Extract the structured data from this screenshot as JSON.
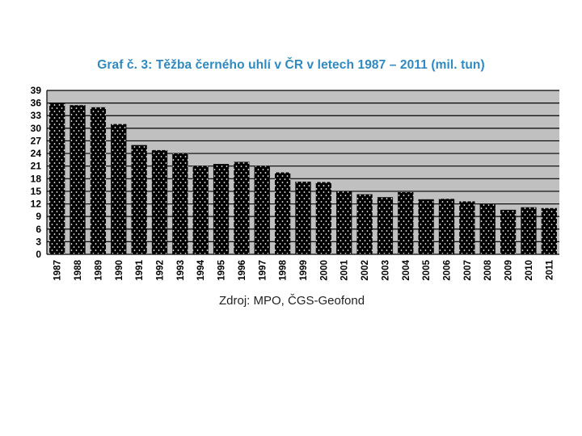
{
  "chart_data": {
    "type": "bar",
    "title": "Graf č. 3: Těžba černého uhlí v ČR v letech 1987 – 2011 (mil. tun)",
    "categories": [
      "1987",
      "1988",
      "1989",
      "1990",
      "1991",
      "1992",
      "1993",
      "1994",
      "1995",
      "1996",
      "1997",
      "1998",
      "1999",
      "2000",
      "2001",
      "2002",
      "2003",
      "2004",
      "2005",
      "2006",
      "2007",
      "2008",
      "2009",
      "2010",
      "2011"
    ],
    "values": [
      36.0,
      35.5,
      35.0,
      31.0,
      26.0,
      24.8,
      24.0,
      21.0,
      21.5,
      22.0,
      21.0,
      19.5,
      17.3,
      17.2,
      15.0,
      14.3,
      13.6,
      14.8,
      13.1,
      13.2,
      12.6,
      12.1,
      10.6,
      11.2,
      11.0
    ],
    "yticks": [
      0,
      3,
      6,
      9,
      12,
      15,
      18,
      21,
      24,
      27,
      30,
      33,
      36,
      39
    ],
    "ylim": [
      0,
      39
    ],
    "xlabel": "",
    "ylabel": "",
    "grid": true,
    "colors": {
      "plot_background": "#c0c0c0",
      "bar_fill": "#000000",
      "bar_dots": "#ffffff",
      "gridline": "#000000",
      "title": "#2e8ac0"
    }
  },
  "source_note": "Zdroj: MPO, ČGS-Geofond"
}
